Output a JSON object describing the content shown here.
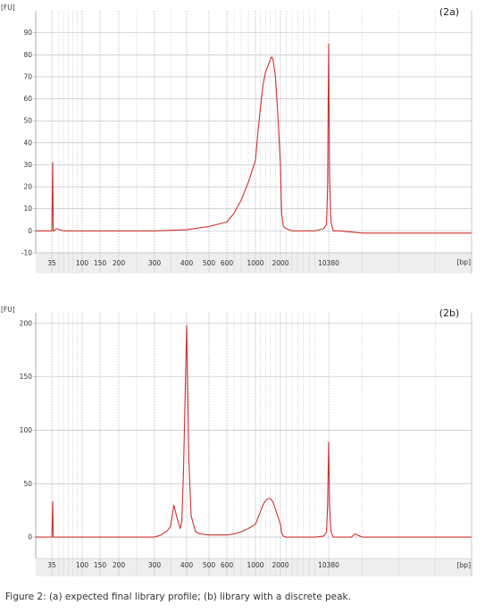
{
  "caption": "Figure 2:  (a) expected final library profile; (b) library with a discrete peak.",
  "colors": {
    "trace": "#d03030",
    "grid": "#b8b8c8",
    "plot_bg": "#ffffff",
    "strip": "#eeeeee"
  },
  "chart_data": [
    {
      "type": "line",
      "panel_label": "(2a)",
      "ylabel": "[FU]",
      "xlabel": "[bp]",
      "ylim": [
        -10,
        100
      ],
      "yticks": [
        -10,
        0,
        10,
        20,
        30,
        40,
        50,
        60,
        70,
        80,
        90
      ],
      "xticks": [
        35,
        100,
        150,
        200,
        300,
        400,
        500,
        600,
        1000,
        2000,
        10380
      ],
      "x": [
        35,
        37,
        38,
        40,
        45,
        60,
        100,
        200,
        300,
        400,
        500,
        600,
        700,
        800,
        900,
        1000,
        1100,
        1200,
        1300,
        1400,
        1500,
        1600,
        1650,
        1700,
        1800,
        1900,
        2000,
        2200,
        2500,
        3000,
        4000,
        6000,
        8000,
        9500,
        10000,
        10200,
        10300,
        10380,
        10500,
        10700,
        11000,
        12000,
        15000,
        20000,
        25000,
        30000
      ],
      "values": [
        0,
        31,
        0,
        0,
        1,
        0,
        0,
        0,
        0,
        0.5,
        2,
        4,
        8,
        14,
        22,
        32,
        45,
        56,
        66,
        72,
        75,
        78,
        79,
        78,
        70,
        52,
        30,
        8,
        2,
        1,
        0,
        0,
        0,
        1,
        3,
        20,
        60,
        85,
        25,
        4,
        0,
        0,
        -1,
        -1,
        -1,
        -1
      ],
      "grid": true
    },
    {
      "type": "line",
      "panel_label": "(2b)",
      "ylabel": "[FU]",
      "xlabel": "[bp]",
      "ylim": [
        -20,
        210
      ],
      "yticks": [
        0,
        50,
        100,
        150,
        200
      ],
      "xticks": [
        35,
        100,
        150,
        200,
        300,
        400,
        500,
        600,
        1000,
        2000,
        10380
      ],
      "x": [
        35,
        37,
        38,
        40,
        60,
        100,
        200,
        300,
        320,
        340,
        350,
        360,
        370,
        380,
        385,
        390,
        400,
        410,
        420,
        440,
        460,
        500,
        600,
        700,
        800,
        900,
        1000,
        1100,
        1200,
        1300,
        1400,
        1500,
        1600,
        1700,
        1800,
        2000,
        2200,
        2500,
        3000,
        5000,
        8000,
        9500,
        10000,
        10200,
        10380,
        10500,
        10700,
        11000,
        12000,
        13500,
        14000,
        15000,
        20000,
        30000
      ],
      "values": [
        0,
        33,
        0,
        0,
        0,
        0,
        0,
        0,
        2,
        6,
        10,
        30,
        18,
        8,
        15,
        60,
        198,
        70,
        20,
        5,
        3,
        2,
        2,
        3,
        5,
        8,
        12,
        18,
        24,
        30,
        34,
        36,
        36,
        33,
        26,
        12,
        4,
        1,
        0,
        0,
        0,
        1,
        5,
        30,
        89,
        30,
        5,
        0,
        0,
        0,
        3,
        0,
        0,
        0
      ],
      "grid": true
    }
  ]
}
